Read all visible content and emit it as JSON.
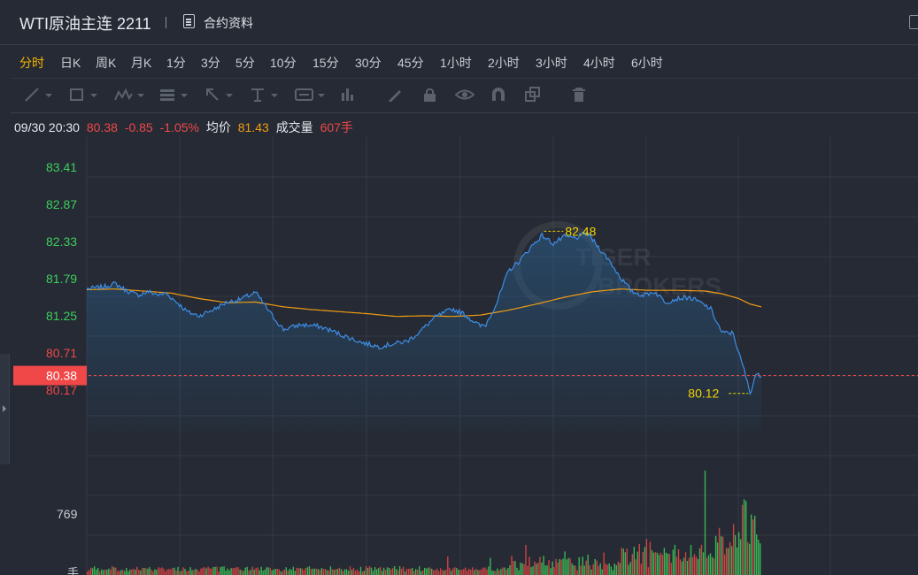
{
  "header": {
    "title": "WTI原油主连 2211",
    "contract_label": "合约资料"
  },
  "periods": [
    {
      "label": "分时",
      "active": true
    },
    {
      "label": "日K"
    },
    {
      "label": "周K"
    },
    {
      "label": "月K"
    },
    {
      "label": "1分"
    },
    {
      "label": "3分"
    },
    {
      "label": "5分"
    },
    {
      "label": "10分"
    },
    {
      "label": "15分"
    },
    {
      "label": "30分"
    },
    {
      "label": "45分"
    },
    {
      "label": "1小时"
    },
    {
      "label": "2小时"
    },
    {
      "label": "3小时"
    },
    {
      "label": "4小时"
    },
    {
      "label": "6小时"
    }
  ],
  "toolbar_icons": [
    "line-tool-icon",
    "rect-tool-icon",
    "wave-tool-icon",
    "fib-tool-icon",
    "arrow-tool-icon",
    "text-tool-icon",
    "measure-tool-icon",
    "bar-tool-icon",
    "pen-icon",
    "lock-icon",
    "eye-icon",
    "magnet-icon",
    "copy-icon",
    "trash-icon"
  ],
  "info": {
    "time": "09/30 20:30",
    "price": "80.38",
    "change": "-0.85",
    "change_pct": "-1.05%",
    "avg_label": "均价",
    "avg_value": "81.43",
    "volume_label": "成交量",
    "volume_value": "607手"
  },
  "colors": {
    "up": "#3ecf5c",
    "down": "#f04848",
    "price_line": "#3d8ee8",
    "avg_line": "#f39c12",
    "annotation": "#f5d400"
  },
  "chart_data": {
    "type": "line",
    "y_ticks": [
      "83.41",
      "82.87",
      "82.33",
      "81.79",
      "81.25",
      "80.71",
      "80.17"
    ],
    "current_price_label": "80.38",
    "high_label": "82.48",
    "low_label": "80.12",
    "volume_tick": "769",
    "volume_unit": "手",
    "ylim": [
      79.55,
      83.85
    ],
    "price_keypoints": [
      [
        0,
        81.64
      ],
      [
        3,
        81.67
      ],
      [
        5,
        81.72
      ],
      [
        7,
        81.62
      ],
      [
        9,
        81.55
      ],
      [
        11,
        81.6
      ],
      [
        13,
        81.55
      ],
      [
        14,
        81.58
      ],
      [
        16,
        81.45
      ],
      [
        18,
        81.3
      ],
      [
        20,
        81.25
      ],
      [
        23,
        81.36
      ],
      [
        25,
        81.45
      ],
      [
        27,
        81.48
      ],
      [
        29,
        81.55
      ],
      [
        30,
        81.59
      ],
      [
        31,
        81.48
      ],
      [
        33,
        81.25
      ],
      [
        35,
        81.05
      ],
      [
        38,
        81.12
      ],
      [
        41,
        81.1
      ],
      [
        43,
        81.05
      ],
      [
        46,
        80.95
      ],
      [
        49,
        80.86
      ],
      [
        52,
        80.8
      ],
      [
        55,
        80.85
      ],
      [
        57,
        80.88
      ],
      [
        59,
        81.0
      ],
      [
        62,
        81.23
      ],
      [
        65,
        81.35
      ],
      [
        67,
        81.28
      ],
      [
        70,
        81.1
      ],
      [
        71,
        81.12
      ],
      [
        73,
        81.45
      ],
      [
        75,
        81.9
      ],
      [
        77,
        82.05
      ],
      [
        79,
        82.25
      ],
      [
        81,
        82.42
      ],
      [
        83,
        82.3
      ],
      [
        85,
        82.4
      ],
      [
        87,
        82.38
      ],
      [
        89,
        82.46
      ],
      [
        91,
        82.25
      ],
      [
        93,
        82.05
      ],
      [
        95,
        81.8
      ],
      [
        97,
        81.6
      ],
      [
        99,
        81.55
      ],
      [
        101,
        81.6
      ],
      [
        103,
        81.45
      ],
      [
        105,
        81.5
      ],
      [
        107,
        81.52
      ],
      [
        109,
        81.45
      ],
      [
        111,
        81.35
      ],
      [
        113,
        81.0
      ],
      [
        115,
        81.0
      ],
      [
        116,
        80.7
      ],
      [
        117,
        80.45
      ],
      [
        118,
        80.12
      ],
      [
        119,
        80.4
      ],
      [
        120,
        80.36
      ]
    ],
    "avg_keypoints": [
      [
        0,
        81.63
      ],
      [
        5,
        81.64
      ],
      [
        10,
        81.61
      ],
      [
        15,
        81.58
      ],
      [
        20,
        81.5
      ],
      [
        25,
        81.44
      ],
      [
        30,
        81.45
      ],
      [
        35,
        81.38
      ],
      [
        40,
        81.34
      ],
      [
        45,
        81.31
      ],
      [
        50,
        81.28
      ],
      [
        55,
        81.24
      ],
      [
        60,
        81.25
      ],
      [
        65,
        81.24
      ],
      [
        70,
        81.26
      ],
      [
        75,
        81.33
      ],
      [
        80,
        81.42
      ],
      [
        85,
        81.52
      ],
      [
        90,
        81.6
      ],
      [
        95,
        81.64
      ],
      [
        100,
        81.62
      ],
      [
        105,
        81.62
      ],
      [
        110,
        81.61
      ],
      [
        113,
        81.57
      ],
      [
        116,
        81.5
      ],
      [
        118,
        81.42
      ],
      [
        120,
        81.38
      ]
    ]
  }
}
